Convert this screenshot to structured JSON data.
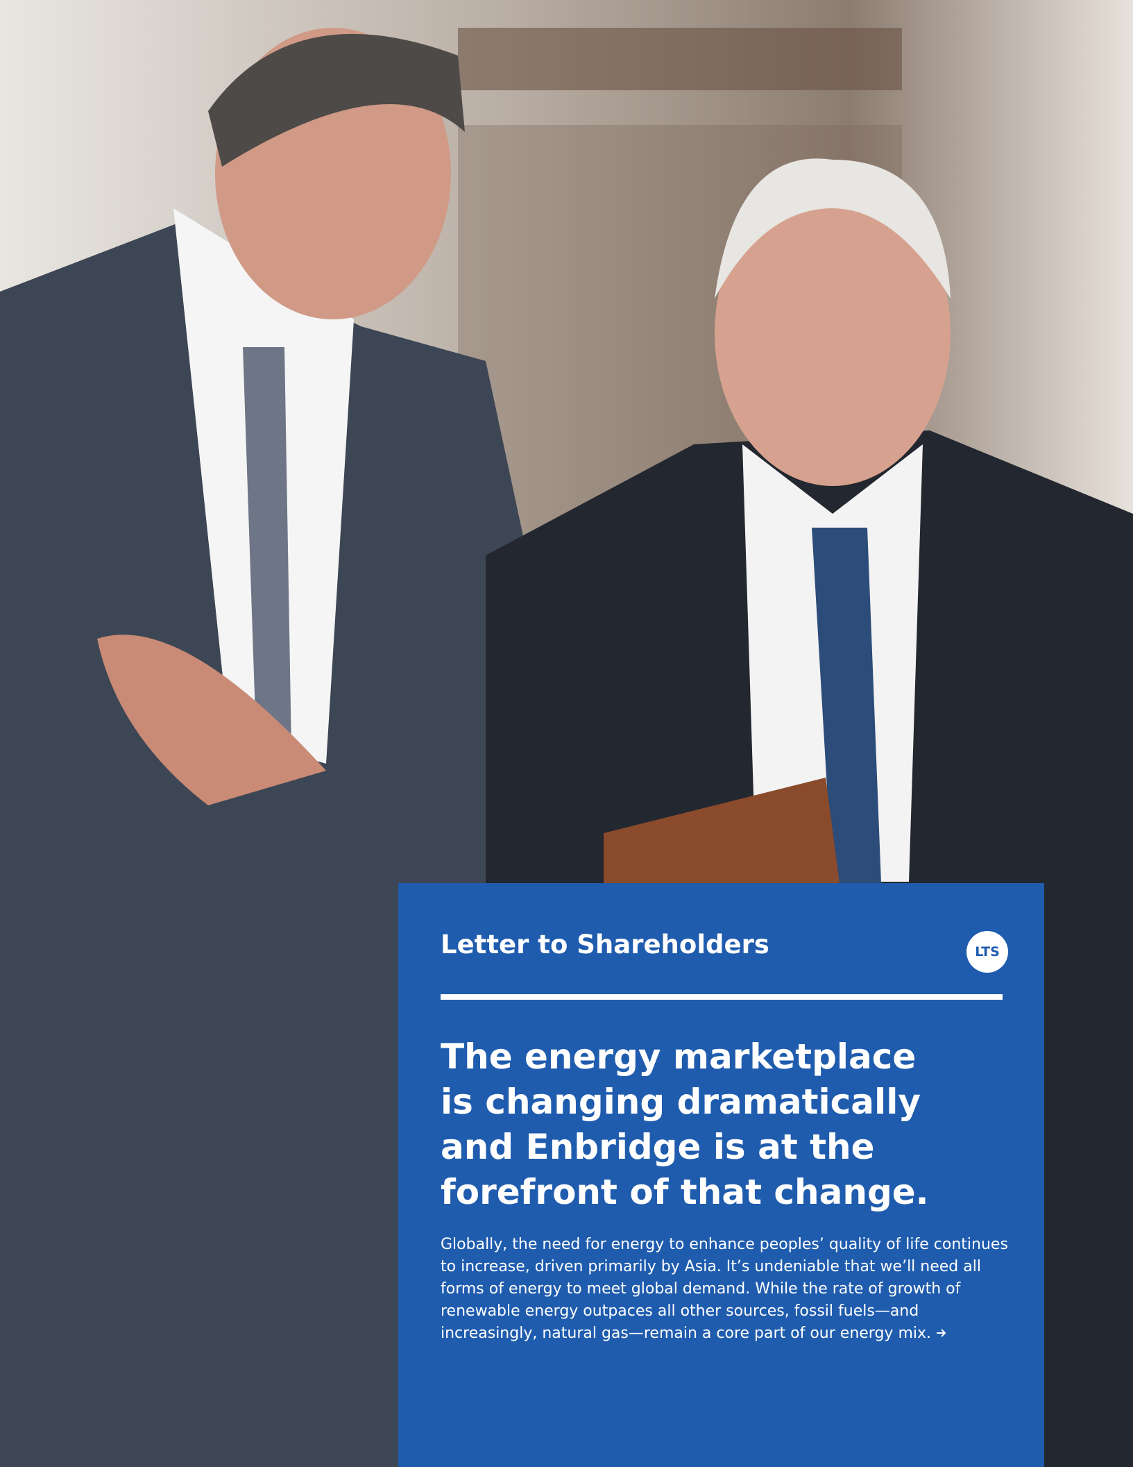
{
  "header": {
    "title": "Letter to Shareholders",
    "badge": "LTS"
  },
  "headline": "The energy marketplace is changing dramatically and Enbridge is at the forefront of that change.",
  "body": "Globally, the need for energy to enhance peoples’ quality of life continues to increase, driven primarily by Asia. It’s undeniable that we’ll need all forms of energy to meet global demand. While the rate of growth of renewable energy outpaces all other sources, fossil fuels—and increasingly, natural gas—remain a core part of our energy mix."
}
